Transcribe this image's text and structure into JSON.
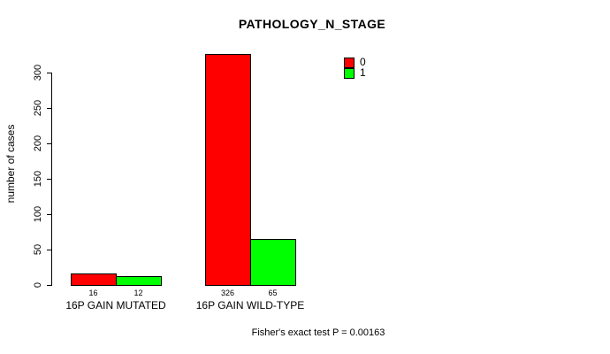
{
  "chart_data": {
    "type": "bar",
    "title": "PATHOLOGY_N_STAGE",
    "xlabel": "",
    "ylabel": "number of cases",
    "categories": [
      "16P GAIN MUTATED",
      "16P GAIN WILD-TYPE"
    ],
    "series": [
      {
        "name": "0",
        "color": "#ff0000",
        "values": [
          16,
          326
        ]
      },
      {
        "name": "1",
        "color": "#00ff00",
        "values": [
          12,
          65
        ]
      }
    ],
    "bar_value_labels": [
      [
        "16",
        "326"
      ],
      [
        "12",
        "65"
      ]
    ],
    "yticks": [
      0,
      50,
      100,
      150,
      200,
      250,
      300
    ],
    "ylim": [
      0,
      340
    ],
    "grid": false,
    "legend_position": "top-right",
    "annotation": "Fisher's exact test P = 0.00163",
    "colors": {
      "background": "#ffffff",
      "axis": "#000000",
      "text": "#000000"
    }
  }
}
